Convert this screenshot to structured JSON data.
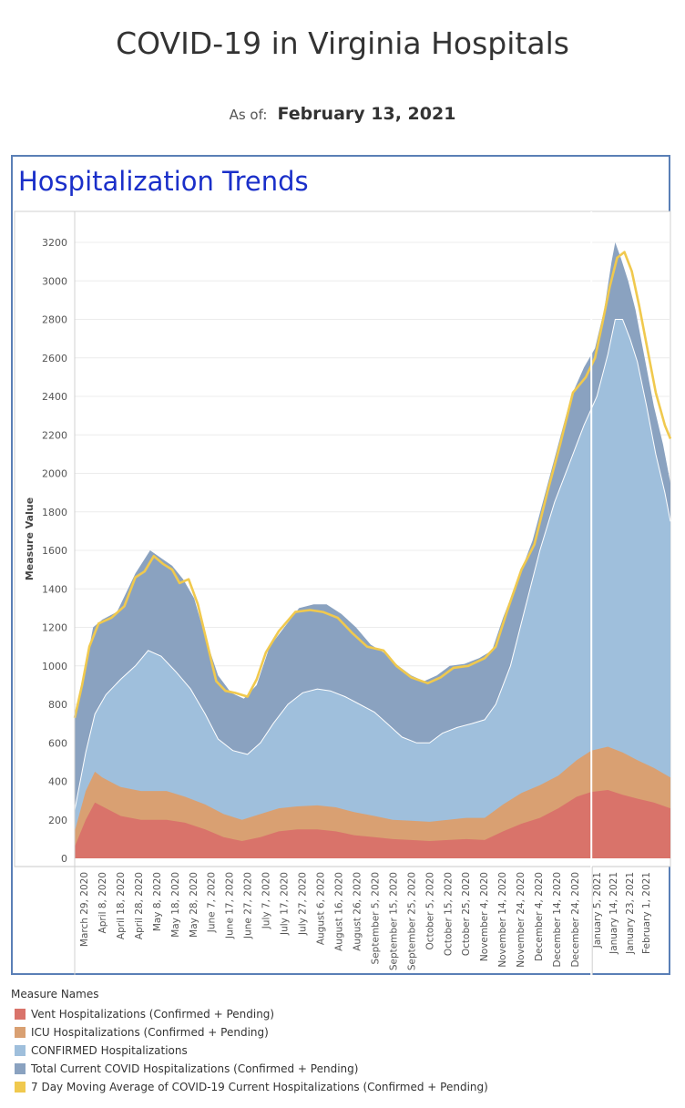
{
  "header": {
    "title": "COVID-19 in Virginia Hospitals",
    "as_of_label": "As of:",
    "as_of_date": "February 13, 2021"
  },
  "section_title": "Hospitalization Trends",
  "colors": {
    "vent": "#d9736a",
    "icu": "#d9a072",
    "confirmed": "#9fbfdc",
    "total": "#8aa2c0",
    "moving_avg": "#f0c94e",
    "frame": "#5a7fb6",
    "section_title": "#1a2fc9"
  },
  "chart_data": {
    "type": "area",
    "ylabel": "Measure Value",
    "ylim": [
      0,
      3300
    ],
    "yticks": [
      0,
      200,
      400,
      600,
      800,
      1000,
      1200,
      1400,
      1600,
      1800,
      2000,
      2200,
      2400,
      2600,
      2800,
      3000,
      3200
    ],
    "x_range": [
      "2020-03-26",
      "2021-02-13"
    ],
    "xtick_labels": [
      "March 29, 2020",
      "April 8, 2020",
      "April 18, 2020",
      "April 28, 2020",
      "May 8, 2020",
      "May 18, 2020",
      "May 28, 2020",
      "June 7, 2020",
      "June 17, 2020",
      "June 27, 2020",
      "July 7, 2020",
      "July 17, 2020",
      "July 27, 2020",
      "August 6, 2020",
      "August 16, 2020",
      "August 26, 2020",
      "September 5, 2020",
      "September 15, 2020",
      "September 25, 2020",
      "October 5, 2020",
      "October 15, 2020",
      "October 25, 2020",
      "November 4, 2020",
      "November 14, 2020",
      "November 24, 2020",
      "December 4, 2020",
      "December 14, 2020",
      "December 24, 2020",
      "January 5, 2021",
      "January 14, 2021",
      "January 23, 2021",
      "February 1, 2021"
    ],
    "year_divider": "2021-01-01",
    "grid": true,
    "legend_position": "bottom",
    "legend_title": "Measure Names",
    "series": [
      {
        "name": "Vent Hospitalizations (Confirmed + Pending)",
        "color_key": "vent",
        "points": [
          [
            "2020-03-26",
            60
          ],
          [
            "2020-04-01",
            200
          ],
          [
            "2020-04-06",
            290
          ],
          [
            "2020-04-10",
            270
          ],
          [
            "2020-04-20",
            220
          ],
          [
            "2020-05-01",
            200
          ],
          [
            "2020-05-15",
            200
          ],
          [
            "2020-05-25",
            185
          ],
          [
            "2020-06-05",
            150
          ],
          [
            "2020-06-15",
            110
          ],
          [
            "2020-06-25",
            90
          ],
          [
            "2020-07-05",
            110
          ],
          [
            "2020-07-15",
            140
          ],
          [
            "2020-07-25",
            150
          ],
          [
            "2020-08-05",
            150
          ],
          [
            "2020-08-15",
            140
          ],
          [
            "2020-08-25",
            120
          ],
          [
            "2020-09-05",
            110
          ],
          [
            "2020-09-15",
            100
          ],
          [
            "2020-09-25",
            95
          ],
          [
            "2020-10-05",
            90
          ],
          [
            "2020-10-15",
            95
          ],
          [
            "2020-10-25",
            100
          ],
          [
            "2020-11-04",
            95
          ],
          [
            "2020-11-14",
            140
          ],
          [
            "2020-11-24",
            180
          ],
          [
            "2020-12-04",
            210
          ],
          [
            "2020-12-14",
            260
          ],
          [
            "2020-12-24",
            320
          ],
          [
            "2021-01-01",
            345
          ],
          [
            "2021-01-10",
            355
          ],
          [
            "2021-01-18",
            330
          ],
          [
            "2021-01-26",
            310
          ],
          [
            "2021-02-04",
            290
          ],
          [
            "2021-02-13",
            260
          ]
        ]
      },
      {
        "name": "ICU Hospitalizations (Confirmed + Pending)",
        "color_key": "icu",
        "points": [
          [
            "2020-03-26",
            140
          ],
          [
            "2020-04-01",
            350
          ],
          [
            "2020-04-06",
            450
          ],
          [
            "2020-04-10",
            420
          ],
          [
            "2020-04-20",
            370
          ],
          [
            "2020-05-01",
            350
          ],
          [
            "2020-05-15",
            350
          ],
          [
            "2020-05-25",
            320
          ],
          [
            "2020-06-05",
            280
          ],
          [
            "2020-06-15",
            230
          ],
          [
            "2020-06-25",
            200
          ],
          [
            "2020-07-05",
            230
          ],
          [
            "2020-07-15",
            260
          ],
          [
            "2020-07-25",
            270
          ],
          [
            "2020-08-05",
            275
          ],
          [
            "2020-08-15",
            265
          ],
          [
            "2020-08-25",
            240
          ],
          [
            "2020-09-05",
            220
          ],
          [
            "2020-09-15",
            200
          ],
          [
            "2020-09-25",
            195
          ],
          [
            "2020-10-05",
            190
          ],
          [
            "2020-10-15",
            200
          ],
          [
            "2020-10-25",
            210
          ],
          [
            "2020-11-04",
            210
          ],
          [
            "2020-11-14",
            280
          ],
          [
            "2020-11-24",
            340
          ],
          [
            "2020-12-04",
            380
          ],
          [
            "2020-12-14",
            430
          ],
          [
            "2020-12-24",
            510
          ],
          [
            "2021-01-01",
            560
          ],
          [
            "2021-01-10",
            580
          ],
          [
            "2021-01-18",
            550
          ],
          [
            "2021-01-26",
            510
          ],
          [
            "2021-02-04",
            470
          ],
          [
            "2021-02-13",
            420
          ]
        ]
      },
      {
        "name": "CONFIRMED Hospitalizations",
        "color_key": "confirmed",
        "points": [
          [
            "2020-03-26",
            250
          ],
          [
            "2020-04-01",
            550
          ],
          [
            "2020-04-06",
            750
          ],
          [
            "2020-04-12",
            850
          ],
          [
            "2020-04-20",
            930
          ],
          [
            "2020-04-28",
            1000
          ],
          [
            "2020-05-05",
            1080
          ],
          [
            "2020-05-12",
            1050
          ],
          [
            "2020-05-20",
            970
          ],
          [
            "2020-05-28",
            880
          ],
          [
            "2020-06-05",
            750
          ],
          [
            "2020-06-12",
            620
          ],
          [
            "2020-06-20",
            560
          ],
          [
            "2020-06-28",
            540
          ],
          [
            "2020-07-05",
            600
          ],
          [
            "2020-07-12",
            700
          ],
          [
            "2020-07-20",
            800
          ],
          [
            "2020-07-28",
            860
          ],
          [
            "2020-08-05",
            880
          ],
          [
            "2020-08-12",
            870
          ],
          [
            "2020-08-20",
            840
          ],
          [
            "2020-08-28",
            800
          ],
          [
            "2020-09-05",
            760
          ],
          [
            "2020-09-12",
            700
          ],
          [
            "2020-09-20",
            630
          ],
          [
            "2020-09-28",
            600
          ],
          [
            "2020-10-05",
            600
          ],
          [
            "2020-10-12",
            650
          ],
          [
            "2020-10-20",
            680
          ],
          [
            "2020-10-28",
            700
          ],
          [
            "2020-11-04",
            720
          ],
          [
            "2020-11-10",
            800
          ],
          [
            "2020-11-18",
            1000
          ],
          [
            "2020-11-26",
            1300
          ],
          [
            "2020-12-04",
            1600
          ],
          [
            "2020-12-12",
            1850
          ],
          [
            "2020-12-20",
            2050
          ],
          [
            "2020-12-28",
            2250
          ],
          [
            "2021-01-04",
            2400
          ],
          [
            "2021-01-10",
            2620
          ],
          [
            "2021-01-14",
            2800
          ],
          [
            "2021-01-18",
            2800
          ],
          [
            "2021-01-22",
            2700
          ],
          [
            "2021-01-26",
            2580
          ],
          [
            "2021-01-31",
            2350
          ],
          [
            "2021-02-05",
            2100
          ],
          [
            "2021-02-10",
            1900
          ],
          [
            "2021-02-13",
            1750
          ]
        ]
      },
      {
        "name": "Total Current COVID Hospitalizations (Confirmed + Pending)",
        "color_key": "total",
        "points": [
          [
            "2020-03-26",
            750
          ],
          [
            "2020-04-01",
            1000
          ],
          [
            "2020-04-05",
            1200
          ],
          [
            "2020-04-10",
            1240
          ],
          [
            "2020-04-18",
            1280
          ],
          [
            "2020-04-28",
            1480
          ],
          [
            "2020-05-06",
            1600
          ],
          [
            "2020-05-12",
            1560
          ],
          [
            "2020-05-18",
            1520
          ],
          [
            "2020-05-24",
            1450
          ],
          [
            "2020-05-30",
            1350
          ],
          [
            "2020-06-05",
            1150
          ],
          [
            "2020-06-12",
            950
          ],
          [
            "2020-06-19",
            860
          ],
          [
            "2020-06-26",
            830
          ],
          [
            "2020-07-03",
            900
          ],
          [
            "2020-07-10",
            1100
          ],
          [
            "2020-07-18",
            1200
          ],
          [
            "2020-07-26",
            1300
          ],
          [
            "2020-08-03",
            1320
          ],
          [
            "2020-08-10",
            1320
          ],
          [
            "2020-08-18",
            1270
          ],
          [
            "2020-08-26",
            1200
          ],
          [
            "2020-09-03",
            1110
          ],
          [
            "2020-09-10",
            1070
          ],
          [
            "2020-09-18",
            1000
          ],
          [
            "2020-09-25",
            950
          ],
          [
            "2020-10-02",
            920
          ],
          [
            "2020-10-09",
            950
          ],
          [
            "2020-10-16",
            1000
          ],
          [
            "2020-10-24",
            1010
          ],
          [
            "2020-11-01",
            1040
          ],
          [
            "2020-11-08",
            1080
          ],
          [
            "2020-11-14",
            1250
          ],
          [
            "2020-11-22",
            1450
          ],
          [
            "2020-11-30",
            1650
          ],
          [
            "2020-12-07",
            1900
          ],
          [
            "2020-12-14",
            2150
          ],
          [
            "2020-12-21",
            2400
          ],
          [
            "2020-12-28",
            2550
          ],
          [
            "2021-01-03",
            2650
          ],
          [
            "2021-01-08",
            2850
          ],
          [
            "2021-01-12",
            3100
          ],
          [
            "2021-01-14",
            3200
          ],
          [
            "2021-01-17",
            3120
          ],
          [
            "2021-01-21",
            3000
          ],
          [
            "2021-01-25",
            2850
          ],
          [
            "2021-01-30",
            2600
          ],
          [
            "2021-02-04",
            2350
          ],
          [
            "2021-02-09",
            2150
          ],
          [
            "2021-02-13",
            1950
          ]
        ]
      },
      {
        "name": "7 Day Moving Average of COVID-19 Current Hospitalizations (Confirmed + Pending)",
        "color_key": "moving_avg",
        "style": "line",
        "points": [
          [
            "2020-03-26",
            730
          ],
          [
            "2020-03-30",
            900
          ],
          [
            "2020-04-03",
            1100
          ],
          [
            "2020-04-08",
            1220
          ],
          [
            "2020-04-15",
            1250
          ],
          [
            "2020-04-22",
            1310
          ],
          [
            "2020-04-28",
            1460
          ],
          [
            "2020-05-03",
            1490
          ],
          [
            "2020-05-08",
            1570
          ],
          [
            "2020-05-13",
            1530
          ],
          [
            "2020-05-18",
            1500
          ],
          [
            "2020-05-22",
            1430
          ],
          [
            "2020-05-27",
            1450
          ],
          [
            "2020-06-01",
            1320
          ],
          [
            "2020-06-06",
            1120
          ],
          [
            "2020-06-11",
            920
          ],
          [
            "2020-06-16",
            870
          ],
          [
            "2020-06-21",
            860
          ],
          [
            "2020-06-28",
            840
          ],
          [
            "2020-07-03",
            930
          ],
          [
            "2020-07-08",
            1070
          ],
          [
            "2020-07-15",
            1180
          ],
          [
            "2020-07-24",
            1280
          ],
          [
            "2020-08-01",
            1290
          ],
          [
            "2020-08-08",
            1280
          ],
          [
            "2020-08-16",
            1250
          ],
          [
            "2020-08-24",
            1170
          ],
          [
            "2020-09-01",
            1100
          ],
          [
            "2020-09-10",
            1080
          ],
          [
            "2020-09-17",
            1000
          ],
          [
            "2020-09-25",
            940
          ],
          [
            "2020-10-04",
            910
          ],
          [
            "2020-10-11",
            940
          ],
          [
            "2020-10-18",
            990
          ],
          [
            "2020-10-26",
            1000
          ],
          [
            "2020-11-04",
            1040
          ],
          [
            "2020-11-10",
            1100
          ],
          [
            "2020-11-16",
            1280
          ],
          [
            "2020-11-24",
            1500
          ],
          [
            "2020-12-01",
            1630
          ],
          [
            "2020-12-08",
            1900
          ],
          [
            "2020-12-15",
            2150
          ],
          [
            "2020-12-22",
            2420
          ],
          [
            "2020-12-29",
            2500
          ],
          [
            "2021-01-03",
            2600
          ],
          [
            "2021-01-07",
            2780
          ],
          [
            "2021-01-11",
            2970
          ],
          [
            "2021-01-15",
            3120
          ],
          [
            "2021-01-19",
            3150
          ],
          [
            "2021-01-23",
            3050
          ],
          [
            "2021-01-27",
            2870
          ],
          [
            "2021-02-01",
            2620
          ],
          [
            "2021-02-05",
            2420
          ],
          [
            "2021-02-10",
            2250
          ],
          [
            "2021-02-13",
            2180
          ]
        ]
      }
    ]
  },
  "legend": {
    "title": "Measure Names",
    "items": [
      {
        "label": "Vent Hospitalizations (Confirmed + Pending)",
        "color": "#d9736a"
      },
      {
        "label": "ICU Hospitalizations (Confirmed + Pending)",
        "color": "#d9a072"
      },
      {
        "label": "CONFIRMED Hospitalizations",
        "color": "#9fbfdc"
      },
      {
        "label": "Total Current COVID Hospitalizations (Confirmed + Pending)",
        "color": "#8aa2c0"
      },
      {
        "label": "7 Day Moving Average of COVID-19 Current Hospitalizations (Confirmed + Pending)",
        "color": "#f0c94e"
      }
    ]
  }
}
